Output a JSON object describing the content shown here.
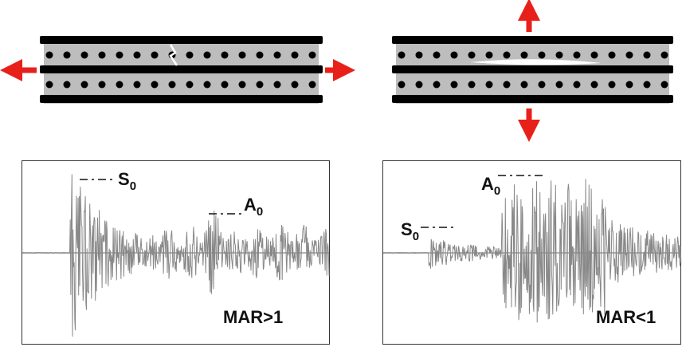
{
  "panels": [
    {
      "s0": {
        "main": "S",
        "sub": "0"
      },
      "a0": {
        "main": "A",
        "sub": "0"
      },
      "mar": "MAR>1"
    },
    {
      "s0": {
        "main": "S",
        "sub": "0"
      },
      "a0": {
        "main": "A",
        "sub": "0"
      },
      "mar": "MAR<1"
    }
  ]
}
